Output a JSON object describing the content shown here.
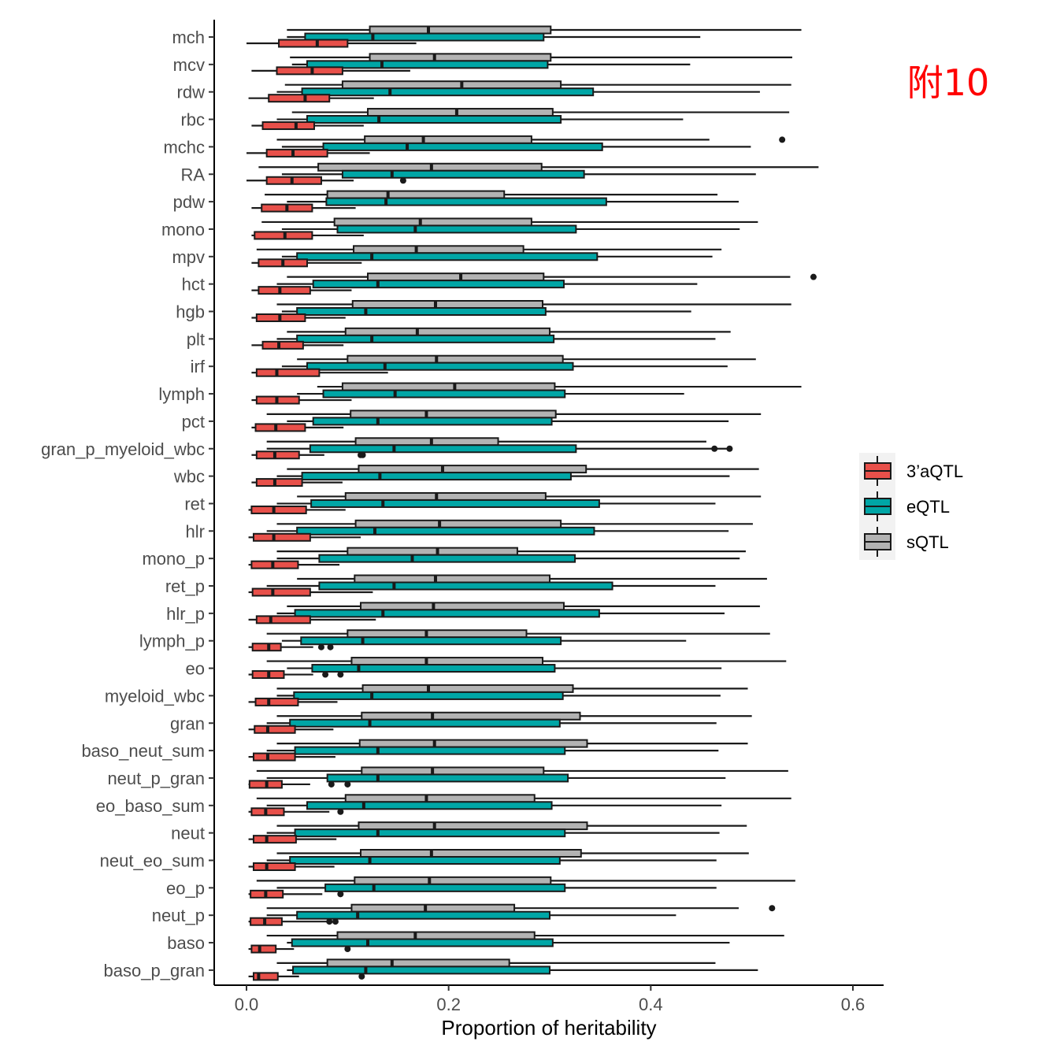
{
  "annotation": "附10",
  "chart_data": {
    "type": "boxplot",
    "orientation": "horizontal",
    "xlabel": "Proportion of heritability",
    "xlim": [
      -0.05,
      0.63
    ],
    "xticks": [
      "0.0",
      "0.2",
      "0.4",
      "0.6"
    ],
    "xtick_values": [
      0.0,
      0.2,
      0.4,
      0.6
    ],
    "grid": false,
    "legend_position": "right",
    "legend": [
      {
        "name": "3’aQTL",
        "color": "#e8504a"
      },
      {
        "name": "eQTL",
        "color": "#00a6a6"
      },
      {
        "name": "sQTL",
        "color": "#b3b3b3"
      }
    ],
    "categories": [
      "mch",
      "mcv",
      "rdw",
      "rbc",
      "mchc",
      "RA",
      "pdw",
      "mono",
      "mpv",
      "hct",
      "hgb",
      "plt",
      "irf",
      "lymph",
      "pct",
      "gran_p_myeloid_wbc",
      "wbc",
      "ret",
      "hlr",
      "mono_p",
      "ret_p",
      "hlr_p",
      "lymph_p",
      "eo",
      "myeloid_wbc",
      "gran",
      "baso_neut_sum",
      "neut_p_gran",
      "eo_baso_sum",
      "neut",
      "neut_eo_sum",
      "eo_p",
      "neut_p",
      "baso",
      "baso_p_gran"
    ],
    "series": [
      {
        "name": "sQTL",
        "boxes": [
          [
            0.04,
            0.122,
            0.18,
            0.301,
            0.549
          ],
          [
            0.043,
            0.122,
            0.186,
            0.301,
            0.54
          ],
          [
            0.038,
            0.095,
            0.213,
            0.311,
            0.539
          ],
          [
            0.045,
            0.12,
            0.208,
            0.303,
            0.537
          ],
          [
            0.03,
            0.117,
            0.175,
            0.282,
            0.458
          ],
          [
            0.012,
            0.071,
            0.183,
            0.292,
            0.566
          ],
          [
            0.018,
            0.08,
            0.14,
            0.255,
            0.466
          ],
          [
            0.015,
            0.087,
            0.172,
            0.282,
            0.506
          ],
          [
            0.01,
            0.106,
            0.168,
            0.274,
            0.47
          ],
          [
            0.04,
            0.12,
            0.212,
            0.294,
            0.538
          ],
          [
            0.03,
            0.105,
            0.187,
            0.293,
            0.539
          ],
          [
            0.04,
            0.098,
            0.169,
            0.3,
            0.479
          ],
          [
            0.05,
            0.1,
            0.188,
            0.313,
            0.504
          ],
          [
            0.07,
            0.095,
            0.206,
            0.305,
            0.549
          ],
          [
            0.02,
            0.103,
            0.178,
            0.306,
            0.509
          ],
          [
            0.02,
            0.108,
            0.183,
            0.249,
            0.455
          ],
          [
            0.04,
            0.111,
            0.194,
            0.336,
            0.507
          ],
          [
            0.05,
            0.098,
            0.188,
            0.296,
            0.509
          ],
          [
            0.03,
            0.108,
            0.191,
            0.311,
            0.501
          ],
          [
            0.03,
            0.1,
            0.189,
            0.268,
            0.494
          ],
          [
            0.05,
            0.107,
            0.187,
            0.3,
            0.515
          ],
          [
            0.04,
            0.113,
            0.185,
            0.314,
            0.508
          ],
          [
            0.02,
            0.1,
            0.178,
            0.277,
            0.518
          ],
          [
            0.02,
            0.104,
            0.178,
            0.293,
            0.534
          ],
          [
            0.03,
            0.115,
            0.18,
            0.323,
            0.496
          ],
          [
            0.03,
            0.114,
            0.184,
            0.33,
            0.5
          ],
          [
            0.03,
            0.112,
            0.186,
            0.337,
            0.496
          ],
          [
            0.01,
            0.114,
            0.184,
            0.294,
            0.536
          ],
          [
            0.01,
            0.098,
            0.178,
            0.285,
            0.539
          ],
          [
            0.03,
            0.111,
            0.186,
            0.337,
            0.495
          ],
          [
            0.03,
            0.113,
            0.183,
            0.331,
            0.497
          ],
          [
            0.01,
            0.107,
            0.181,
            0.301,
            0.543
          ],
          [
            0.02,
            0.104,
            0.177,
            0.265,
            0.487
          ],
          [
            0.02,
            0.09,
            0.167,
            0.285,
            0.532
          ],
          [
            0.03,
            0.08,
            0.144,
            0.26,
            0.464
          ]
        ]
      },
      {
        "name": "eQTL",
        "boxes": [
          [
            0.04,
            0.058,
            0.125,
            0.294,
            0.449
          ],
          [
            0.045,
            0.06,
            0.134,
            0.298,
            0.439
          ],
          [
            0.03,
            0.055,
            0.142,
            0.343,
            0.508
          ],
          [
            0.03,
            0.06,
            0.131,
            0.311,
            0.432
          ],
          [
            0.035,
            0.076,
            0.159,
            0.352,
            0.499
          ],
          [
            0.035,
            0.095,
            0.144,
            0.334,
            0.504
          ],
          [
            0.04,
            0.079,
            0.138,
            0.356,
            0.487
          ],
          [
            0.035,
            0.09,
            0.167,
            0.326,
            0.488
          ],
          [
            0.035,
            0.05,
            0.124,
            0.347,
            0.461
          ],
          [
            0.03,
            0.066,
            0.13,
            0.314,
            0.446
          ],
          [
            0.035,
            0.05,
            0.118,
            0.296,
            0.44
          ],
          [
            0.03,
            0.05,
            0.124,
            0.304,
            0.464
          ],
          [
            0.035,
            0.06,
            0.137,
            0.323,
            0.476
          ],
          [
            0.05,
            0.076,
            0.147,
            0.315,
            0.433
          ],
          [
            0.04,
            0.066,
            0.13,
            0.302,
            0.477
          ],
          [
            0.02,
            0.063,
            0.146,
            0.326,
            0.476
          ],
          [
            0.03,
            0.055,
            0.132,
            0.321,
            0.478
          ],
          [
            0.03,
            0.064,
            0.135,
            0.349,
            0.464
          ],
          [
            0.02,
            0.05,
            0.127,
            0.344,
            0.477
          ],
          [
            0.03,
            0.072,
            0.164,
            0.325,
            0.488
          ],
          [
            0.02,
            0.072,
            0.146,
            0.362,
            0.464
          ],
          [
            0.03,
            0.048,
            0.135,
            0.349,
            0.473
          ],
          [
            0.035,
            0.054,
            0.115,
            0.311,
            0.435
          ],
          [
            0.04,
            0.065,
            0.111,
            0.305,
            0.47
          ],
          [
            0.03,
            0.047,
            0.124,
            0.313,
            0.469
          ],
          [
            0.02,
            0.043,
            0.122,
            0.31,
            0.465
          ],
          [
            0.02,
            0.048,
            0.13,
            0.315,
            0.467
          ],
          [
            0.02,
            0.08,
            0.13,
            0.318,
            0.474
          ],
          [
            0.02,
            0.06,
            0.116,
            0.302,
            0.47
          ],
          [
            0.02,
            0.048,
            0.13,
            0.315,
            0.468
          ],
          [
            0.02,
            0.043,
            0.122,
            0.31,
            0.465
          ],
          [
            0.03,
            0.078,
            0.126,
            0.315,
            0.465
          ],
          [
            0.02,
            0.05,
            0.11,
            0.3,
            0.425
          ],
          [
            0.04,
            0.045,
            0.12,
            0.303,
            0.478
          ],
          [
            0.04,
            0.046,
            0.118,
            0.3,
            0.506
          ]
        ]
      },
      {
        "name": "3’aQTL",
        "boxes": [
          [
            0.0,
            0.032,
            0.07,
            0.1,
            0.168
          ],
          [
            0.005,
            0.03,
            0.065,
            0.095,
            0.162
          ],
          [
            0.002,
            0.022,
            0.058,
            0.082,
            0.126
          ],
          [
            0.005,
            0.016,
            0.049,
            0.067,
            0.116
          ],
          [
            0.0,
            0.02,
            0.046,
            0.08,
            0.122
          ],
          [
            0.0,
            0.02,
            0.045,
            0.074,
            0.106
          ],
          [
            0.005,
            0.015,
            0.04,
            0.065,
            0.108
          ],
          [
            0.005,
            0.008,
            0.038,
            0.065,
            0.116
          ],
          [
            0.005,
            0.012,
            0.036,
            0.06,
            0.114
          ],
          [
            0.005,
            0.012,
            0.033,
            0.063,
            0.104
          ],
          [
            0.005,
            0.01,
            0.033,
            0.058,
            0.098
          ],
          [
            0.005,
            0.016,
            0.032,
            0.056,
            0.096
          ],
          [
            0.005,
            0.01,
            0.03,
            0.072,
            0.14
          ],
          [
            0.005,
            0.01,
            0.03,
            0.052,
            0.104
          ],
          [
            0.005,
            0.009,
            0.029,
            0.058,
            0.096
          ],
          [
            0.005,
            0.01,
            0.028,
            0.052,
            0.077
          ],
          [
            0.005,
            0.01,
            0.028,
            0.055,
            0.095
          ],
          [
            0.002,
            0.005,
            0.027,
            0.059,
            0.098
          ],
          [
            0.002,
            0.007,
            0.027,
            0.063,
            0.113
          ],
          [
            0.002,
            0.005,
            0.026,
            0.051,
            0.092
          ],
          [
            0.002,
            0.006,
            0.026,
            0.063,
            0.125
          ],
          [
            0.002,
            0.01,
            0.024,
            0.063,
            0.128
          ],
          [
            0.002,
            0.006,
            0.022,
            0.034,
            0.066
          ],
          [
            0.002,
            0.006,
            0.022,
            0.037,
            0.066
          ],
          [
            0.002,
            0.009,
            0.022,
            0.051,
            0.09
          ],
          [
            0.002,
            0.008,
            0.021,
            0.048,
            0.086
          ],
          [
            0.002,
            0.007,
            0.021,
            0.048,
            0.088
          ],
          [
            0.002,
            0.003,
            0.02,
            0.035,
            0.063
          ],
          [
            0.002,
            0.005,
            0.019,
            0.037,
            0.082
          ],
          [
            0.002,
            0.007,
            0.02,
            0.049,
            0.089
          ],
          [
            0.002,
            0.007,
            0.02,
            0.048,
            0.087
          ],
          [
            0.002,
            0.004,
            0.019,
            0.036,
            0.075
          ],
          [
            0.002,
            0.004,
            0.018,
            0.035,
            0.084
          ],
          [
            0.002,
            0.005,
            0.013,
            0.029,
            0.047
          ],
          [
            0.002,
            0.007,
            0.012,
            0.031,
            0.052
          ]
        ]
      }
    ],
    "outliers": [
      {
        "category": "mchc",
        "series": "sQTL",
        "values": [
          0.53
        ]
      },
      {
        "category": "RA",
        "series": "3’aQTL",
        "values": [
          0.155
        ]
      },
      {
        "category": "hct",
        "series": "sQTL",
        "values": [
          0.561
        ]
      },
      {
        "category": "gran_p_myeloid_wbc",
        "series": "eQTL",
        "values": [
          0.463,
          0.478
        ]
      },
      {
        "category": "gran_p_myeloid_wbc",
        "series": "3’aQTL",
        "values": [
          0.113,
          0.115
        ]
      },
      {
        "category": "lymph_p",
        "series": "3’aQTL",
        "values": [
          0.074,
          0.083
        ]
      },
      {
        "category": "eo",
        "series": "3’aQTL",
        "values": [
          0.078,
          0.093
        ]
      },
      {
        "category": "neut_p_gran",
        "series": "3’aQTL",
        "values": [
          0.084,
          0.1
        ]
      },
      {
        "category": "eo_baso_sum",
        "series": "3’aQTL",
        "values": [
          0.093
        ]
      },
      {
        "category": "eo_p",
        "series": "3’aQTL",
        "values": [
          0.093
        ]
      },
      {
        "category": "neut_p",
        "series": "sQTL",
        "values": [
          0.52
        ]
      },
      {
        "category": "neut_p",
        "series": "3’aQTL",
        "values": [
          0.082,
          0.088
        ]
      },
      {
        "category": "baso",
        "series": "3’aQTL",
        "values": [
          0.1
        ]
      },
      {
        "category": "baso_p_gran",
        "series": "3’aQTL",
        "values": [
          0.114
        ]
      }
    ]
  }
}
